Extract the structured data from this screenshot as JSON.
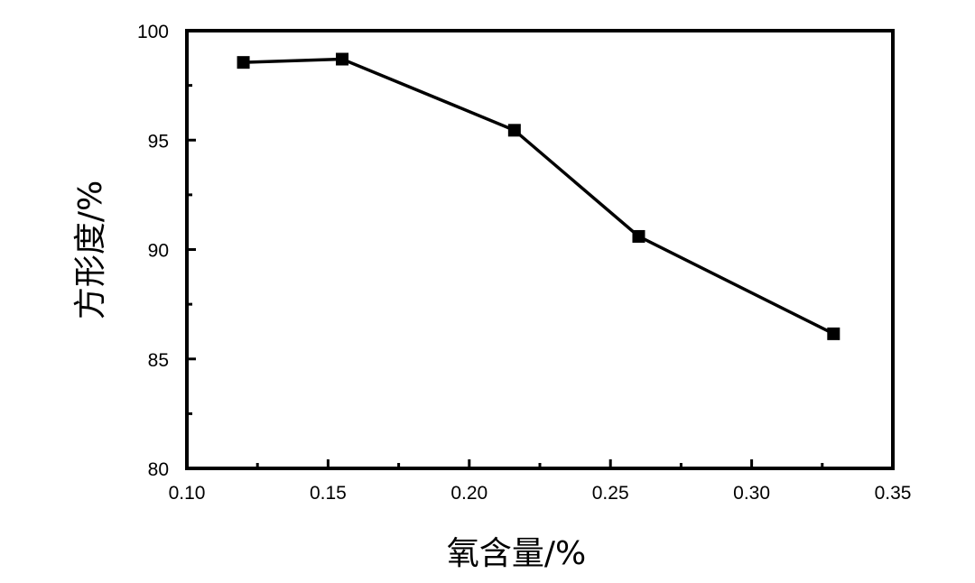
{
  "chart_data": {
    "type": "line",
    "title": "",
    "xlabel": "氧含量/%",
    "ylabel": "方形度/%",
    "xlim": [
      0.1,
      0.35
    ],
    "ylim": [
      80,
      100
    ],
    "x_ticks": [
      "0.10",
      "0.15",
      "0.20",
      "0.25",
      "0.30",
      "0.35"
    ],
    "y_ticks": [
      "80",
      "85",
      "90",
      "95",
      "100"
    ],
    "grid": false,
    "marker": "square",
    "color": "#000000",
    "series": [
      {
        "x": [
          0.12,
          0.155,
          0.216,
          0.26,
          0.329
        ],
        "y": [
          98.55,
          98.7,
          95.45,
          90.6,
          86.15
        ]
      }
    ]
  }
}
